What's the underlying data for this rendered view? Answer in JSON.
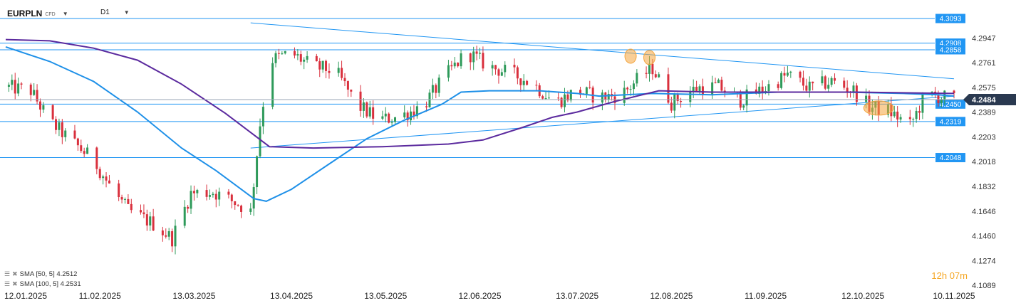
{
  "header": {
    "symbol": "EURPLN",
    "instrument_type": "CFD",
    "timeframe": "D1"
  },
  "legend": [
    {
      "label": "SMA [50, 5] 4.2512"
    },
    {
      "label": "SMA [100, 5] 4.2531"
    }
  ],
  "timer": {
    "hours": "12",
    "h": "h",
    "minutes": "07",
    "m": "m"
  },
  "colors": {
    "bull": "#2e9a5a",
    "bear": "#d9303d",
    "sma50": "#1e90e8",
    "sma100": "#5b2a9e",
    "level": "#2196f3",
    "trend": "#2196f3",
    "marker": "#f4a640",
    "price_tag": "#2a3950"
  },
  "chart_data": {
    "type": "candlestick",
    "x_tick_labels": [
      "12.01.2025",
      "11.02.2025",
      "13.03.2025",
      "13.04.2025",
      "13.05.2025",
      "12.06.2025",
      "13.07.2025",
      "12.08.2025",
      "11.09.2025",
      "12.10.2025",
      "10.11.2025"
    ],
    "x_range": [
      "2025-01-12",
      "2025-11-10"
    ],
    "y_tick_labels": [
      "4.2947",
      "4.2761",
      "4.2575",
      "4.2389",
      "4.2203",
      "4.2018",
      "4.1832",
      "4.1646",
      "4.1460",
      "4.1274",
      "4.1089"
    ],
    "ylim": [
      4.1089,
      4.3093
    ],
    "grid": false,
    "horizontal_levels": [
      4.3093,
      4.2908,
      4.2858,
      4.245,
      4.2319,
      4.2048
    ],
    "current_price": 4.2484,
    "trendlines": [
      {
        "from": [
          "2025-03-31",
          4.306
        ],
        "to": [
          "2025-11-10",
          4.264
        ]
      },
      {
        "from": [
          "2025-03-31",
          4.212
        ],
        "to": [
          "2025-11-10",
          4.251
        ]
      }
    ],
    "highlight_markers": [
      {
        "date": "2025-07-30",
        "price": 4.281
      },
      {
        "date": "2025-08-05",
        "price": 4.28
      },
      {
        "date": "2025-10-17",
        "price": 4.242
      }
    ],
    "series": [
      {
        "name": "SMA [50, 5]",
        "last_value": 4.2512,
        "points": [
          [
            "2025-01-12",
            4.288
          ],
          [
            "2025-01-26",
            4.277
          ],
          [
            "2025-02-09",
            4.262
          ],
          [
            "2025-02-23",
            4.239
          ],
          [
            "2025-03-09",
            4.212
          ],
          [
            "2025-03-20",
            4.195
          ],
          [
            "2025-04-01",
            4.174
          ],
          [
            "2025-04-05",
            4.172
          ],
          [
            "2025-04-13",
            4.181
          ],
          [
            "2025-04-25",
            4.2
          ],
          [
            "2025-05-07",
            4.219
          ],
          [
            "2025-05-19",
            4.233
          ],
          [
            "2025-05-31",
            4.245
          ],
          [
            "2025-06-06",
            4.254
          ],
          [
            "2025-06-15",
            4.255
          ],
          [
            "2025-07-01",
            4.255
          ],
          [
            "2025-07-13",
            4.253
          ],
          [
            "2025-07-20",
            4.251
          ],
          [
            "2025-08-06",
            4.253
          ],
          [
            "2025-08-25",
            4.252
          ],
          [
            "2025-09-15",
            4.254
          ],
          [
            "2025-10-06",
            4.254
          ],
          [
            "2025-10-25",
            4.253
          ],
          [
            "2025-11-05",
            4.252
          ],
          [
            "2025-11-10",
            4.251
          ]
        ]
      },
      {
        "name": "SMA [100, 5]",
        "last_value": 4.2531,
        "points": [
          [
            "2025-01-12",
            4.2935
          ],
          [
            "2025-01-26",
            4.2925
          ],
          [
            "2025-02-09",
            4.287
          ],
          [
            "2025-02-23",
            4.278
          ],
          [
            "2025-03-09",
            4.26
          ],
          [
            "2025-03-23",
            4.238
          ],
          [
            "2025-04-06",
            4.213
          ],
          [
            "2025-04-20",
            4.212
          ],
          [
            "2025-05-12",
            4.213
          ],
          [
            "2025-06-02",
            4.215
          ],
          [
            "2025-06-13",
            4.218
          ],
          [
            "2025-06-25",
            4.227
          ],
          [
            "2025-07-05",
            4.235
          ],
          [
            "2025-07-13",
            4.239
          ],
          [
            "2025-07-25",
            4.247
          ],
          [
            "2025-08-08",
            4.255
          ],
          [
            "2025-08-25",
            4.254
          ],
          [
            "2025-09-22",
            4.254
          ],
          [
            "2025-10-10",
            4.254
          ],
          [
            "2025-11-10",
            4.253
          ]
        ]
      }
    ],
    "candle_anchors": [
      [
        "2025-01-12",
        4.258
      ],
      [
        "2025-01-20",
        4.255
      ],
      [
        "2025-01-26",
        4.232
      ],
      [
        "2025-02-02",
        4.217
      ],
      [
        "2025-02-09",
        4.203
      ],
      [
        "2025-02-14",
        4.184
      ],
      [
        "2025-02-20",
        4.165
      ],
      [
        "2025-02-28",
        4.155
      ],
      [
        "2025-03-06",
        4.144
      ],
      [
        "2025-03-12",
        4.178
      ],
      [
        "2025-03-19",
        4.179
      ],
      [
        "2025-03-27",
        4.17
      ],
      [
        "2025-03-31",
        4.164
      ],
      [
        "2025-04-03",
        4.23
      ],
      [
        "2025-04-06",
        4.278
      ],
      [
        "2025-04-13",
        4.283
      ],
      [
        "2025-04-20",
        4.273
      ],
      [
        "2025-04-27",
        4.27
      ],
      [
        "2025-05-04",
        4.244
      ],
      [
        "2025-05-11",
        4.233
      ],
      [
        "2025-05-18",
        4.236
      ],
      [
        "2025-05-25",
        4.244
      ],
      [
        "2025-06-01",
        4.266
      ],
      [
        "2025-06-08",
        4.284
      ],
      [
        "2025-06-15",
        4.273
      ],
      [
        "2025-06-22",
        4.268
      ],
      [
        "2025-06-29",
        4.26
      ],
      [
        "2025-07-06",
        4.246
      ],
      [
        "2025-07-13",
        4.255
      ],
      [
        "2025-07-20",
        4.25
      ],
      [
        "2025-07-27",
        4.252
      ],
      [
        "2025-08-02",
        4.265
      ],
      [
        "2025-08-06",
        4.272
      ],
      [
        "2025-08-12",
        4.246
      ],
      [
        "2025-08-20",
        4.257
      ],
      [
        "2025-08-27",
        4.258
      ],
      [
        "2025-09-03",
        4.248
      ],
      [
        "2025-09-11",
        4.257
      ],
      [
        "2025-09-18",
        4.267
      ],
      [
        "2025-09-25",
        4.257
      ],
      [
        "2025-10-02",
        4.262
      ],
      [
        "2025-10-09",
        4.255
      ],
      [
        "2025-10-14",
        4.243
      ],
      [
        "2025-10-20",
        4.24
      ],
      [
        "2025-10-27",
        4.229
      ],
      [
        "2025-11-01",
        4.252
      ],
      [
        "2025-11-07",
        4.25
      ],
      [
        "2025-11-10",
        4.249
      ]
    ]
  }
}
